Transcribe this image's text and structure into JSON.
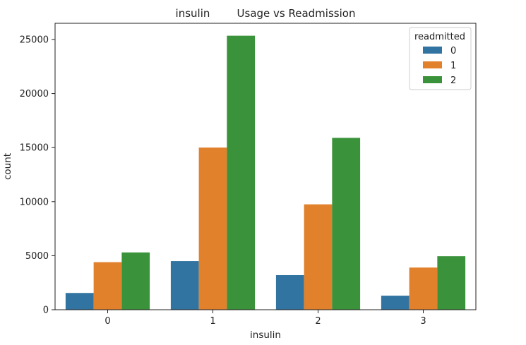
{
  "chart_data": {
    "type": "bar",
    "title": "insulin        Usage vs Readmission",
    "xlabel": "insulin",
    "ylabel": "count",
    "categories": [
      "0",
      "1",
      "2",
      "3"
    ],
    "ylim": [
      0,
      26500
    ],
    "yticks": [
      0,
      5000,
      10000,
      15000,
      20000,
      25000
    ],
    "legend_title": "readmitted",
    "legend_position": "top-right",
    "grid": false,
    "series": [
      {
        "name": "0",
        "color": "#3274a1",
        "values": [
          1550,
          4500,
          3200,
          1300
        ]
      },
      {
        "name": "1",
        "color": "#e1812c",
        "values": [
          4400,
          15000,
          9750,
          3900
        ]
      },
      {
        "name": "2",
        "color": "#3a923a",
        "values": [
          5300,
          25350,
          15900,
          4950
        ]
      }
    ]
  }
}
